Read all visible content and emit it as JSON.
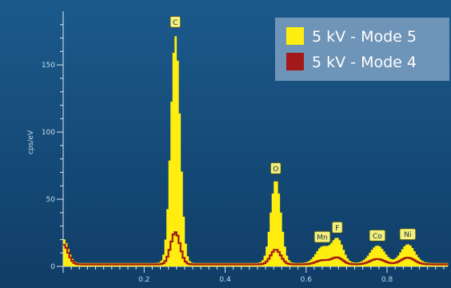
{
  "colors": {
    "background_top": "#1b5a8c",
    "background_bottom": "#103d66",
    "series_fill": "#ffee10",
    "series_line": "#a31818",
    "legend_bg": "#6e94b8",
    "axis": "#dce9f5"
  },
  "chart_data": {
    "type": "bar",
    "title": "",
    "xlabel": "",
    "ylabel": "cps/eV",
    "xlim": [
      0.0,
      0.95
    ],
    "ylim": [
      0,
      190
    ],
    "x_ticks": [
      {
        "value": 0.2,
        "label": "0.2"
      },
      {
        "value": 0.4,
        "label": "0.4"
      },
      {
        "value": 0.6,
        "label": "0.6"
      },
      {
        "value": 0.8,
        "label": "0.8"
      }
    ],
    "y_ticks": [
      {
        "value": 0,
        "label": "0"
      },
      {
        "value": 50,
        "label": "50"
      },
      {
        "value": 100,
        "label": "100"
      },
      {
        "value": 150,
        "label": "150"
      }
    ],
    "legend": {
      "position": "top-right",
      "entries": [
        {
          "label": "5 kV - Mode 5",
          "color": "#ffee10"
        },
        {
          "label": "5 kV - Mode 4",
          "color": "#a31818"
        }
      ]
    },
    "series": [
      {
        "name": "5 kV - Mode 5",
        "style": "filled-bars",
        "peaks": [
          {
            "center": 0.0,
            "height": 18,
            "width": 0.012
          },
          {
            "center": 0.277,
            "height": 169,
            "width": 0.0115
          },
          {
            "center": 0.525,
            "height": 62,
            "width": 0.0125
          },
          {
            "center": 0.64,
            "height": 12,
            "width": 0.016
          },
          {
            "center": 0.677,
            "height": 18,
            "width": 0.014
          },
          {
            "center": 0.776,
            "height": 13,
            "width": 0.018
          },
          {
            "center": 0.851,
            "height": 14,
            "width": 0.017
          }
        ],
        "baseline": 2.5
      },
      {
        "name": "5 kV - Mode 4",
        "style": "step-line",
        "peaks": [
          {
            "center": 0.0,
            "height": 15,
            "width": 0.012
          },
          {
            "center": 0.277,
            "height": 24,
            "width": 0.0115
          },
          {
            "center": 0.525,
            "height": 11,
            "width": 0.0125
          },
          {
            "center": 0.64,
            "height": 3,
            "width": 0.016
          },
          {
            "center": 0.677,
            "height": 5,
            "width": 0.014
          },
          {
            "center": 0.776,
            "height": 4,
            "width": 0.018
          },
          {
            "center": 0.851,
            "height": 5,
            "width": 0.017
          }
        ],
        "baseline": 1.5
      }
    ],
    "peak_labels": [
      {
        "label": "C",
        "x": 0.277,
        "y": 182
      },
      {
        "label": "O",
        "x": 0.525,
        "y": 73
      },
      {
        "label": "Mn",
        "x": 0.64,
        "y": 22
      },
      {
        "label": "F",
        "x": 0.677,
        "y": 29
      },
      {
        "label": "Co",
        "x": 0.776,
        "y": 23
      },
      {
        "label": "Ni",
        "x": 0.851,
        "y": 24
      }
    ]
  }
}
